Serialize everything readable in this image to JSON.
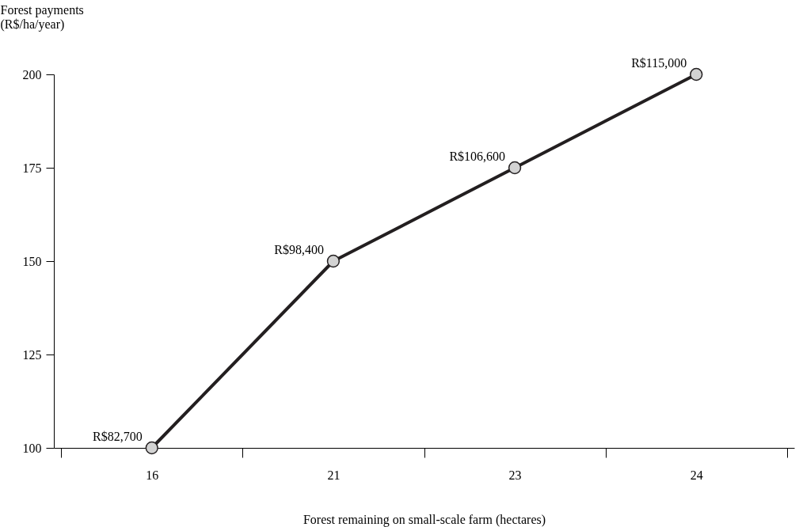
{
  "chart_data": {
    "type": "line",
    "ylabel": "Forest payments\n(R$/ha/year)",
    "xlabel": "Forest remaining on small-scale farm (hectares)",
    "categories": [
      "16",
      "21",
      "23",
      "24"
    ],
    "series": [
      {
        "color": "#231f20",
        "values": [
          100,
          150,
          175,
          200
        ]
      }
    ],
    "ylim": [
      100,
      200
    ],
    "yticks": [
      100,
      125,
      150,
      175,
      200
    ],
    "marker": "circle",
    "line_style": "solid",
    "grid": false,
    "annotations": [
      {
        "text": "R$82,700",
        "x": "16",
        "y": 100
      },
      {
        "text": "R$98,400",
        "x": "21",
        "y": 150
      },
      {
        "text": "R$106,600",
        "x": "23",
        "y": 175
      },
      {
        "text": "R$115,000",
        "x": "24",
        "y": 200
      }
    ]
  }
}
